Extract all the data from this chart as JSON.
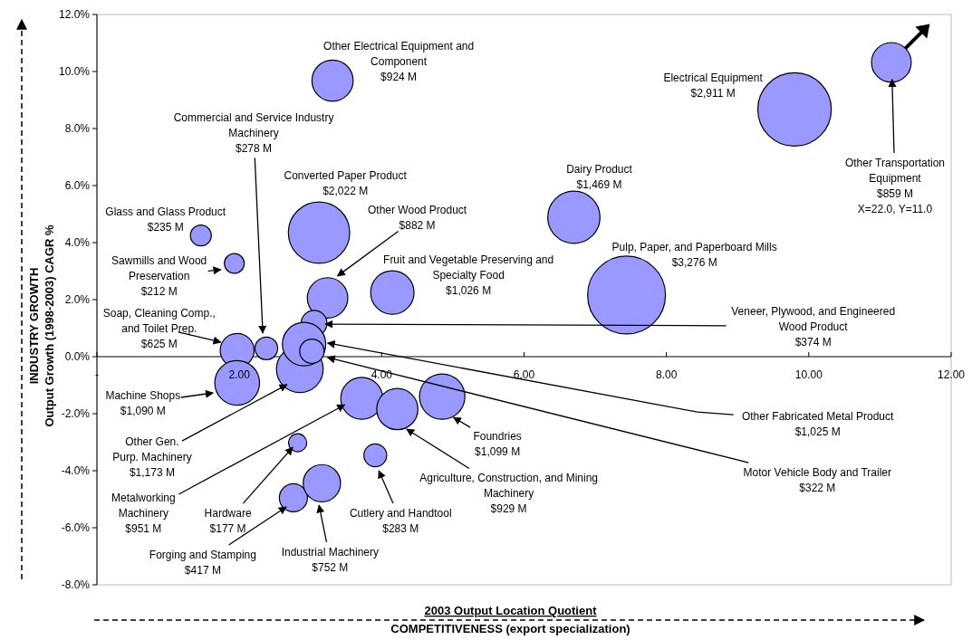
{
  "chart_data": {
    "type": "bubble",
    "xlabel": "2003 Output Location Quotient\nCOMPETITIVENESS (export specialization)",
    "ylabel": "INDUSTRY GROWTH\nOutput Growth (1998-2003) CAGR %",
    "xlim": [
      0,
      12
    ],
    "ylim": [
      -8,
      12
    ],
    "xticks": [
      {
        "value": 0,
        "label": "-"
      },
      {
        "value": 2,
        "label": "2.00"
      },
      {
        "value": 4,
        "label": "4.00"
      },
      {
        "value": 6,
        "label": "6.00"
      },
      {
        "value": 8,
        "label": "8.00"
      },
      {
        "value": 10,
        "label": "10.00"
      },
      {
        "value": 12,
        "label": "12.00"
      }
    ],
    "yticks": [
      {
        "value": -8,
        "label": "-8.0%"
      },
      {
        "value": -6,
        "label": "-6.0%"
      },
      {
        "value": -4,
        "label": "-4.0%"
      },
      {
        "value": -2,
        "label": "-2.0%"
      },
      {
        "value": 0,
        "label": "0.0%"
      },
      {
        "value": 2,
        "label": "2.0%"
      },
      {
        "value": 4,
        "label": "4.0%"
      },
      {
        "value": 6,
        "label": "6.0%"
      },
      {
        "value": 8,
        "label": "8.0%"
      },
      {
        "value": 10,
        "label": "10.0%"
      },
      {
        "value": 12,
        "label": "12.0%"
      }
    ],
    "grid": false,
    "series": [
      {
        "color": "#9999ff",
        "x": [
          3.31,
          2.38,
          3.12,
          1.46,
          3.24,
          1.93,
          4.15,
          1.97,
          1.97,
          2.85,
          3.72,
          2.82,
          2.76,
          3.16,
          3.91,
          4.22,
          4.85,
          6.7,
          7.44,
          3.05,
          2.91,
          3.02,
          9.8,
          11.16
        ],
        "values": [
          9.68,
          0.29,
          4.35,
          4.25,
          2.06,
          3.27,
          2.25,
          0.22,
          -0.92,
          -0.44,
          -1.46,
          -3.02,
          -4.95,
          -4.44,
          -3.46,
          -1.84,
          -1.4,
          4.89,
          2.16,
          1.17,
          0.44,
          0.19,
          8.67,
          10.32
        ],
        "sizes": [
          0.28,
          0.085,
          0.62,
          0.072,
          0.27,
          0.065,
          0.31,
          0.19,
          0.33,
          0.36,
          0.29,
          0.054,
          0.13,
          0.23,
          0.086,
          0.28,
          0.34,
          0.45,
          1,
          0.11,
          0.31,
          0.098,
          0.89,
          0.26
        ]
      }
    ],
    "annotations": [
      "Other Electrical Equipment and\nComponent\n$924 M",
      {
        "text": "Commercial and Service Industry\nMachinery\n$278 M",
        "x": 2.33,
        "y": 0.83
      },
      "Converted Paper Product\n$2,022 M",
      "Glass and Glass Product\n$235 M",
      {
        "text": "Other Wood Product\n$882 M",
        "x": 3.38,
        "y": 2.83
      },
      {
        "text": "Sawmills and Wood\nPreservation\n$212 M",
        "x": 1.74,
        "y": 3.05
      },
      "Fruit and Vegetable Preserving and\nSpecialty Food\n$1,026 M",
      {
        "text": "Soap, Cleaning Comp.,\nand Toilet Prep.\n$625 M",
        "x": 1.74,
        "y": 0.51
      },
      {
        "text": "Machine Shops\n$1,090 M",
        "x": 1.63,
        "y": -1.27
      },
      {
        "text": "Other Gen.\nPurp. Machinery\n$1,173 M",
        "x": 2.67,
        "y": -0.98
      },
      {
        "text": "Metalworking\nMachinery\n$951 M",
        "x": 3.48,
        "y": -1.69
      },
      {
        "text": "Hardware\n$177 M",
        "x": 2.75,
        "y": -3.18
      },
      {
        "text": "Forging and Stamping\n$417 M",
        "x": 2.66,
        "y": -5.27
      },
      {
        "text": "Industrial Machinery\n$752 M",
        "x": 3.12,
        "y": -5.21
      },
      {
        "text": "Cutlery and Handtool\n$283 M",
        "x": 3.96,
        "y": -4.0
      },
      {
        "text": "Agriculture, Construction, and Mining\nMachinery\n$929 M",
        "x": 4.35,
        "y": -2.54
      },
      {
        "text": "Foundries\n$1,099 M",
        "x": 5.01,
        "y": -2.13
      },
      "Dairy Product\n$1,469 M",
      "Pulp, Paper, and Paperboard Mills\n$3,276 M",
      {
        "text": "Veneer, Plywood, and Engineered\nWood Product\n$374 M",
        "x": 3.21,
        "y": 1.14
      },
      {
        "text": "Other Fabricated Metal Product\n$1,025 M",
        "x": 3.24,
        "y": 0.48
      },
      {
        "text": "Motor Vehicle Body and Trailer\n$322 M",
        "x": 3.24,
        "y": -0.03
      },
      "Electrical Equipment\n$2,911 M",
      {
        "text": "Other Transportation\nEquipment\n$859 M\nX=22.0, Y=11.0",
        "x": 11.17,
        "y": 9.72
      }
    ]
  }
}
